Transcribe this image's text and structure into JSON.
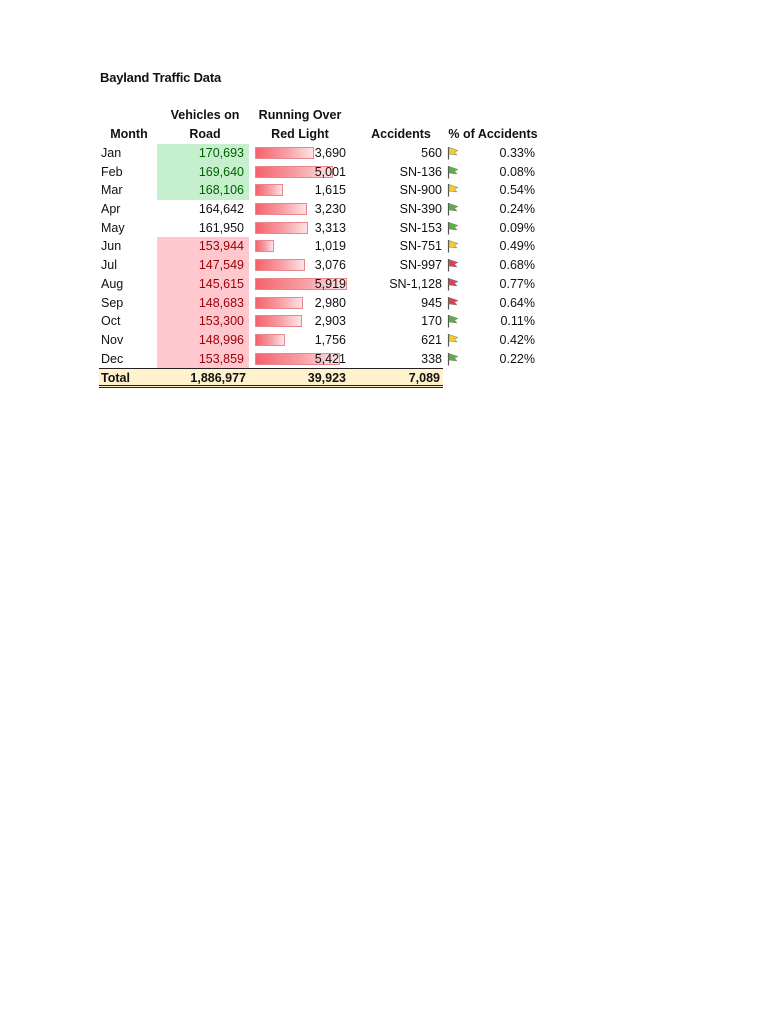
{
  "title": "Bayland Traffic Data",
  "headers": {
    "month": "Month",
    "vehicles_line1": "Vehicles on",
    "vehicles_line2": "Road",
    "redlight_line1": "Running Over",
    "redlight_line2": "Red Light",
    "accidents": "Accidents",
    "pct_accidents": "% of Accidents"
  },
  "colors": {
    "good_fill": "#c6efce",
    "good_text": "#006100",
    "bad_fill": "#ffc7ce",
    "bad_text": "#9c0006",
    "bar_red": "#f5636c",
    "total_fill": "#fff2cc",
    "flag_green": "#5cb043",
    "flag_yellow": "#f2cf2b",
    "flag_red": "#e0424b"
  },
  "rows": [
    {
      "month": "Jan",
      "vehicles": "170,693",
      "vehicles_status": "good",
      "red_light": "3,690",
      "red_light_value": 3690,
      "accidents": "560",
      "flag": "yellow",
      "pct": "0.33%"
    },
    {
      "month": "Feb",
      "vehicles": "169,640",
      "vehicles_status": "good",
      "red_light": "5,001",
      "red_light_value": 5001,
      "accidents": "SN-136",
      "flag": "green",
      "pct": "0.08%"
    },
    {
      "month": "Mar",
      "vehicles": "168,106",
      "vehicles_status": "good",
      "red_light": "1,615",
      "red_light_value": 1615,
      "accidents": "SN-900",
      "flag": "yellow",
      "pct": "0.54%"
    },
    {
      "month": "Apr",
      "vehicles": "164,642",
      "vehicles_status": "neutral",
      "red_light": "3,230",
      "red_light_value": 3230,
      "accidents": "SN-390",
      "flag": "green",
      "pct": "0.24%"
    },
    {
      "month": "May",
      "vehicles": "161,950",
      "vehicles_status": "neutral",
      "red_light": "3,313",
      "red_light_value": 3313,
      "accidents": "SN-153",
      "flag": "green",
      "pct": "0.09%"
    },
    {
      "month": "Jun",
      "vehicles": "153,944",
      "vehicles_status": "bad",
      "red_light": "1,019",
      "red_light_value": 1019,
      "accidents": "SN-751",
      "flag": "yellow",
      "pct": "0.49%"
    },
    {
      "month": "Jul",
      "vehicles": "147,549",
      "vehicles_status": "bad",
      "red_light": "3,076",
      "red_light_value": 3076,
      "accidents": "SN-997",
      "flag": "red",
      "pct": "0.68%"
    },
    {
      "month": "Aug",
      "vehicles": "145,615",
      "vehicles_status": "bad",
      "red_light": "5,919",
      "red_light_value": 5919,
      "accidents": "SN-1,128",
      "flag": "red",
      "pct": "0.77%"
    },
    {
      "month": "Sep",
      "vehicles": "148,683",
      "vehicles_status": "bad",
      "red_light": "2,980",
      "red_light_value": 2980,
      "accidents": "945",
      "flag": "red",
      "pct": "0.64%"
    },
    {
      "month": "Oct",
      "vehicles": "153,300",
      "vehicles_status": "bad",
      "red_light": "2,903",
      "red_light_value": 2903,
      "accidents": "170",
      "flag": "green",
      "pct": "0.11%"
    },
    {
      "month": "Nov",
      "vehicles": "148,996",
      "vehicles_status": "bad",
      "red_light": "1,756",
      "red_light_value": 1756,
      "accidents": "621",
      "flag": "yellow",
      "pct": "0.42%"
    },
    {
      "month": "Dec",
      "vehicles": "153,859",
      "vehicles_status": "bad",
      "red_light": "5,421",
      "red_light_value": 5421,
      "accidents": "338",
      "flag": "green",
      "pct": "0.22%"
    }
  ],
  "total": {
    "label": "Total",
    "vehicles": "1,886,977",
    "red_light": "39,923",
    "accidents": "7,089"
  }
}
